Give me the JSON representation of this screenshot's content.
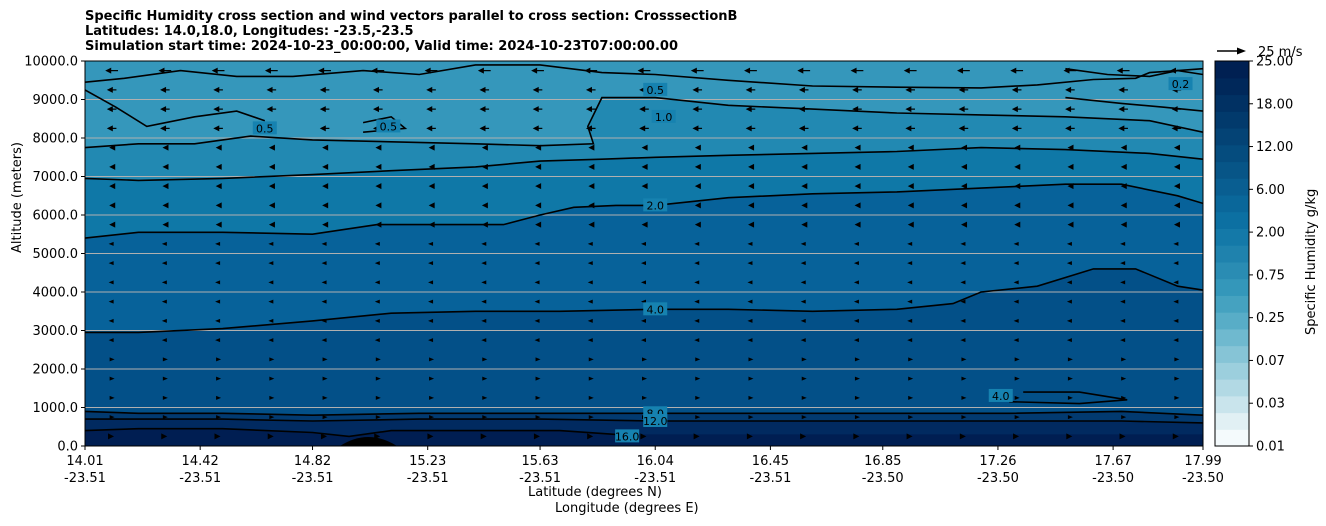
{
  "title": {
    "line1": "Specific Humidity cross section and wind vectors parallel to cross section: CrosssectionB",
    "line2": "Latitudes: 14.0,18.0, Longitudes: -23.5,-23.5",
    "line3": "Simulation start time: 2024-10-23_00:00:00, Valid time: 2024-10-23T07:00:00.00"
  },
  "axes": {
    "ylabel": "Altitude (meters)",
    "xlabel_lat": "Latitude (degrees N)",
    "xlabel_lon": "Longitude (degrees E)"
  },
  "colorbar": {
    "label": "Specific Humidity g/kg",
    "tick_labels": [
      "0.01",
      "0.03",
      "0.07",
      "0.25",
      "0.75",
      "2.00",
      "6.00",
      "12.00",
      "18.00",
      "25.00"
    ],
    "colors": [
      "#f4fafc",
      "#e1f0f4",
      "#c9e4ec",
      "#b2d9e4",
      "#9ccfdd",
      "#86c4d6",
      "#6fb9cf",
      "#58adc7",
      "#45a2c0",
      "#3497ba",
      "#2a8cb3",
      "#1f82ad",
      "#1479a8",
      "#0c70a2",
      "#0a679a",
      "#095e91",
      "#075587",
      "#054c7e",
      "#044375",
      "#023a6c",
      "#013163",
      "#00285a",
      "#002052"
    ]
  },
  "quiver_key": {
    "label": "25 m/s",
    "speed": 25
  },
  "chart_data": {
    "type": "contour",
    "title": "Specific Humidity cross section and wind vectors parallel to cross section: CrosssectionB",
    "ylabel": "Altitude (meters)",
    "xlabel": "Latitude (degrees N) / Longitude (degrees E)",
    "ylim": [
      0,
      10000
    ],
    "xlim": [
      14.01,
      17.99
    ],
    "x_ticks": [
      {
        "lat": "14.01",
        "lon": "-23.51",
        "x": 14.01
      },
      {
        "lat": "14.42",
        "lon": "-23.51",
        "x": 14.42
      },
      {
        "lat": "14.82",
        "lon": "-23.51",
        "x": 14.82
      },
      {
        "lat": "15.23",
        "lon": "-23.51",
        "x": 15.23
      },
      {
        "lat": "15.63",
        "lon": "-23.51",
        "x": 15.63
      },
      {
        "lat": "16.04",
        "lon": "-23.51",
        "x": 16.04
      },
      {
        "lat": "16.45",
        "lon": "-23.51",
        "x": 16.45
      },
      {
        "lat": "16.85",
        "lon": "-23.50",
        "x": 16.85
      },
      {
        "lat": "17.26",
        "lon": "-23.50",
        "x": 17.26
      },
      {
        "lat": "17.67",
        "lon": "-23.50",
        "x": 17.67
      },
      {
        "lat": "17.99",
        "lon": "-23.50",
        "x": 17.99
      }
    ],
    "y_ticks": [
      {
        "label": "0.0",
        "value": 0
      },
      {
        "label": "1000.0",
        "value": 1000
      },
      {
        "label": "2000.0",
        "value": 2000
      },
      {
        "label": "3000.0",
        "value": 3000
      },
      {
        "label": "4000.0",
        "value": 4000
      },
      {
        "label": "5000.0",
        "value": 5000
      },
      {
        "label": "6000.0",
        "value": 6000
      },
      {
        "label": "7000.0",
        "value": 7000
      },
      {
        "label": "8000.0",
        "value": 8000
      },
      {
        "label": "9000.0",
        "value": 9000
      },
      {
        "label": "10000.0",
        "value": 10000
      }
    ],
    "grid": "horizontal",
    "contour_lines": [
      {
        "level": "0.5",
        "points": [
          [
            14.01,
            9450
          ],
          [
            14.15,
            9550
          ],
          [
            14.35,
            9750
          ],
          [
            14.55,
            9600
          ],
          [
            14.75,
            9600
          ],
          [
            15.0,
            9750
          ],
          [
            15.2,
            9650
          ],
          [
            15.4,
            9900
          ],
          [
            15.63,
            9900
          ],
          [
            15.85,
            9700
          ],
          [
            16.04,
            9650
          ],
          [
            16.3,
            9500
          ],
          [
            16.6,
            9350
          ],
          [
            16.9,
            9320
          ],
          [
            17.2,
            9300
          ],
          [
            17.4,
            9380
          ],
          [
            17.6,
            9520
          ],
          [
            17.75,
            9550
          ],
          [
            17.8,
            9700
          ],
          [
            17.9,
            9750
          ],
          [
            17.99,
            9800
          ]
        ]
      },
      {
        "level": "0.5",
        "points": [
          [
            14.01,
            9250
          ],
          [
            14.12,
            8800
          ],
          [
            14.23,
            8300
          ],
          [
            14.4,
            8550
          ],
          [
            14.55,
            8700
          ],
          [
            14.65,
            8450
          ]
        ]
      },
      {
        "level": "0.5",
        "points": [
          [
            15.0,
            8400
          ],
          [
            15.1,
            8550
          ],
          [
            15.15,
            8250
          ],
          [
            15.0,
            8150
          ]
        ]
      },
      {
        "level": "1.0",
        "points": [
          [
            14.01,
            7750
          ],
          [
            14.2,
            7850
          ],
          [
            14.4,
            7850
          ],
          [
            14.6,
            8050
          ],
          [
            14.82,
            7950
          ],
          [
            15.1,
            7900
          ],
          [
            15.4,
            7850
          ],
          [
            15.63,
            7800
          ],
          [
            15.82,
            7850
          ],
          [
            15.8,
            8300
          ],
          [
            15.85,
            9050
          ],
          [
            16.04,
            9050
          ],
          [
            16.3,
            8850
          ],
          [
            16.6,
            8750
          ],
          [
            16.9,
            8650
          ],
          [
            17.2,
            8600
          ],
          [
            17.5,
            8550
          ],
          [
            17.8,
            8450
          ],
          [
            17.99,
            8150
          ]
        ]
      },
      {
        "level": "1.0",
        "points": [
          [
            17.5,
            9050
          ],
          [
            17.7,
            8900
          ],
          [
            17.85,
            8800
          ],
          [
            17.99,
            8700
          ]
        ]
      },
      {
        "level": "1.0",
        "points": [
          [
            17.5,
            9800
          ],
          [
            17.65,
            9650
          ],
          [
            17.8,
            9600
          ],
          [
            17.9,
            9750
          ],
          [
            17.99,
            9650
          ]
        ]
      },
      {
        "level": "2.0",
        "points": [
          [
            14.01,
            6950
          ],
          [
            14.2,
            6900
          ],
          [
            14.5,
            6950
          ],
          [
            14.82,
            7050
          ],
          [
            15.1,
            7150
          ],
          [
            15.4,
            7250
          ],
          [
            15.63,
            7400
          ],
          [
            15.85,
            7450
          ],
          [
            16.04,
            7500
          ],
          [
            16.3,
            7550
          ],
          [
            16.6,
            7600
          ],
          [
            16.9,
            7650
          ],
          [
            17.2,
            7750
          ],
          [
            17.5,
            7700
          ],
          [
            17.8,
            7600
          ],
          [
            17.99,
            7450
          ]
        ]
      },
      {
        "level": "2.0",
        "points": [
          [
            14.01,
            5400
          ],
          [
            14.2,
            5550
          ],
          [
            14.5,
            5550
          ],
          [
            14.82,
            5500
          ],
          [
            15.05,
            5750
          ],
          [
            15.3,
            5750
          ],
          [
            15.5,
            5750
          ],
          [
            15.63,
            6000
          ],
          [
            15.75,
            6200
          ],
          [
            15.9,
            6250
          ],
          [
            16.04,
            6250
          ],
          [
            16.3,
            6450
          ],
          [
            16.6,
            6550
          ],
          [
            16.9,
            6600
          ],
          [
            17.2,
            6700
          ],
          [
            17.5,
            6800
          ],
          [
            17.7,
            6800
          ],
          [
            17.9,
            6500
          ],
          [
            17.99,
            6300
          ]
        ]
      },
      {
        "level": "4.0",
        "points": [
          [
            14.01,
            2950
          ],
          [
            14.2,
            2950
          ],
          [
            14.5,
            3050
          ],
          [
            14.82,
            3250
          ],
          [
            15.1,
            3450
          ],
          [
            15.4,
            3500
          ],
          [
            15.7,
            3500
          ],
          [
            16.04,
            3550
          ],
          [
            16.3,
            3550
          ],
          [
            16.6,
            3500
          ],
          [
            16.9,
            3550
          ],
          [
            17.1,
            3700
          ],
          [
            17.2,
            4000
          ],
          [
            17.4,
            4150
          ],
          [
            17.6,
            4600
          ],
          [
            17.75,
            4600
          ],
          [
            17.9,
            4150
          ],
          [
            17.99,
            4050
          ]
        ]
      },
      {
        "level": "4.0",
        "points": [
          [
            17.35,
            1400
          ],
          [
            17.55,
            1400
          ],
          [
            17.72,
            1200
          ],
          [
            17.55,
            1100
          ],
          [
            17.3,
            1150
          ]
        ]
      },
      {
        "level": "8.0",
        "points": [
          [
            14.01,
            900
          ],
          [
            14.2,
            850
          ],
          [
            14.5,
            850
          ],
          [
            14.82,
            800
          ],
          [
            15.2,
            850
          ],
          [
            15.63,
            850
          ],
          [
            16.04,
            850
          ],
          [
            16.45,
            850
          ],
          [
            16.9,
            850
          ],
          [
            17.3,
            850
          ],
          [
            17.7,
            900
          ],
          [
            17.99,
            800
          ]
        ]
      },
      {
        "level": "12.0",
        "points": [
          [
            14.01,
            700
          ],
          [
            14.2,
            700
          ],
          [
            14.5,
            700
          ],
          [
            14.82,
            650
          ],
          [
            15.2,
            700
          ],
          [
            15.63,
            700
          ],
          [
            16.04,
            650
          ],
          [
            16.45,
            650
          ],
          [
            16.9,
            650
          ],
          [
            17.3,
            650
          ],
          [
            17.7,
            650
          ],
          [
            17.99,
            600
          ]
        ]
      },
      {
        "level": "16.0",
        "points": [
          [
            14.01,
            400
          ],
          [
            14.2,
            450
          ],
          [
            14.5,
            450
          ],
          [
            14.82,
            350
          ],
          [
            14.95,
            250
          ],
          [
            15.1,
            400
          ],
          [
            15.4,
            400
          ],
          [
            15.7,
            400
          ],
          [
            15.9,
            300
          ]
        ]
      }
    ],
    "contour_labels": [
      {
        "text": "0.5",
        "x": 16.04,
        "y": 9250
      },
      {
        "text": "1.0",
        "x": 16.07,
        "y": 8550
      },
      {
        "text": "2.0",
        "x": 16.04,
        "y": 6250
      },
      {
        "text": "4.0",
        "x": 16.04,
        "y": 3550
      },
      {
        "text": "8.0",
        "x": 16.04,
        "y": 850
      },
      {
        "text": "12.0",
        "x": 16.04,
        "y": 650
      },
      {
        "text": "16.0",
        "x": 15.94,
        "y": 250
      },
      {
        "text": "0.5",
        "x": 14.65,
        "y": 8250
      },
      {
        "text": "0.5",
        "x": 15.09,
        "y": 8300
      },
      {
        "text": "0.2",
        "x": 17.91,
        "y": 9400
      },
      {
        "text": "4.0",
        "x": 17.27,
        "y": 1300
      }
    ],
    "wind_vectors": [
      {
        "zmin": 9500,
        "zmax": 10000,
        "u": -8
      },
      {
        "zmin": 8200,
        "zmax": 9500,
        "u": -6
      },
      {
        "zmin": 5500,
        "zmax": 8200,
        "u": -3
      },
      {
        "zmin": 2500,
        "zmax": 5500,
        "u": -1
      },
      {
        "zmin": 500,
        "zmax": 2500,
        "u": 1.5
      },
      {
        "zmin": 0,
        "zmax": 500,
        "u": 3
      }
    ]
  }
}
